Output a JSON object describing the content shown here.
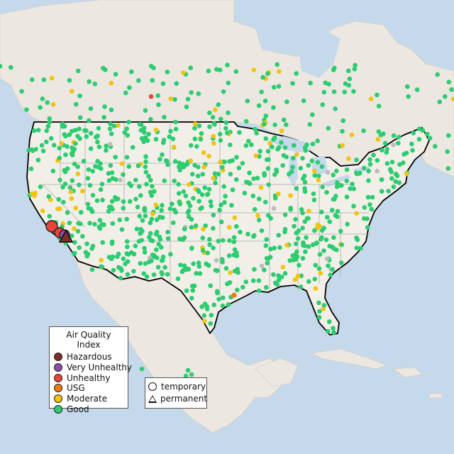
{
  "legend": {
    "title": "Air Quality Index",
    "levels": [
      {
        "label": "Hazardous",
        "color": "#7e2d2b"
      },
      {
        "label": "Very Unhealthy",
        "color": "#8a4fa6"
      },
      {
        "label": "Unhealthy",
        "color": "#e6453a"
      },
      {
        "label": "USG",
        "color": "#ee7a12"
      },
      {
        "label": "Moderate",
        "color": "#f2c40f"
      },
      {
        "label": "Good",
        "color": "#2ecc71"
      }
    ]
  },
  "monitor_types": {
    "temporary": {
      "label": "temporary",
      "shape": "circle"
    },
    "permanent": {
      "label": "permanent",
      "shape": "triangle"
    }
  },
  "colors": {
    "water": "#c6d9ea",
    "land": "#f2efe9",
    "canada": "#ece7e1",
    "us_border": "#000000",
    "state_lines": "#aaaaaa",
    "no_data": "#bdbdbd"
  }
}
